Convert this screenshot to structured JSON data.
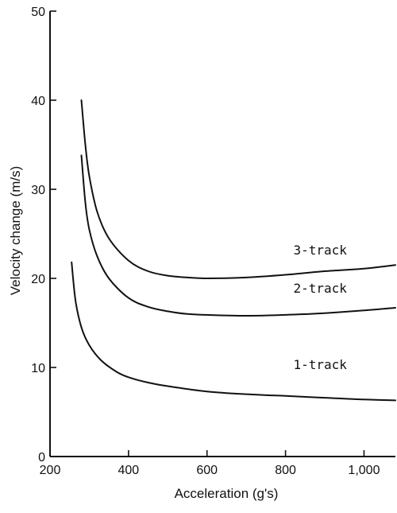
{
  "chart_data": {
    "type": "line",
    "title": "",
    "xlabel": "Acceleration (g's)",
    "ylabel": "Velocity change (m/s)",
    "xlim": [
      200,
      1080
    ],
    "ylim": [
      0,
      50
    ],
    "xticks": [
      200,
      400,
      600,
      800,
      1000
    ],
    "xtick_labels": [
      "200",
      "400",
      "600",
      "800",
      "1,000"
    ],
    "yticks": [
      0,
      10,
      20,
      30,
      40,
      50
    ],
    "ytick_labels": [
      "0",
      "10",
      "20",
      "30",
      "40",
      "50"
    ],
    "grid": false,
    "series": [
      {
        "name": "3-track",
        "x": [
          280,
          290,
          300,
          320,
          350,
          400,
          450,
          500,
          550,
          600,
          700,
          800,
          900,
          1000,
          1080
        ],
        "y": [
          40.0,
          35.0,
          31.5,
          27.5,
          24.5,
          22.0,
          20.8,
          20.3,
          20.1,
          20.0,
          20.1,
          20.4,
          20.8,
          21.1,
          21.5
        ]
      },
      {
        "name": "2-track",
        "x": [
          280,
          290,
          300,
          320,
          350,
          400,
          450,
          500,
          550,
          600,
          700,
          800,
          900,
          1000,
          1080
        ],
        "y": [
          33.8,
          28.5,
          25.5,
          22.5,
          20.0,
          17.8,
          16.8,
          16.3,
          16.0,
          15.9,
          15.8,
          15.9,
          16.1,
          16.4,
          16.7
        ]
      },
      {
        "name": "1-track",
        "x": [
          255,
          265,
          280,
          300,
          330,
          370,
          400,
          450,
          500,
          600,
          700,
          800,
          900,
          1000,
          1080
        ],
        "y": [
          21.8,
          17.5,
          14.5,
          12.5,
          10.8,
          9.5,
          8.9,
          8.3,
          7.9,
          7.3,
          7.0,
          6.8,
          6.6,
          6.4,
          6.3
        ]
      }
    ],
    "annotations": [
      {
        "text": "3-track",
        "x": 820,
        "y": 22.7
      },
      {
        "text": "2-track",
        "x": 820,
        "y": 18.4
      },
      {
        "text": "1-track",
        "x": 820,
        "y": 9.8
      }
    ]
  }
}
